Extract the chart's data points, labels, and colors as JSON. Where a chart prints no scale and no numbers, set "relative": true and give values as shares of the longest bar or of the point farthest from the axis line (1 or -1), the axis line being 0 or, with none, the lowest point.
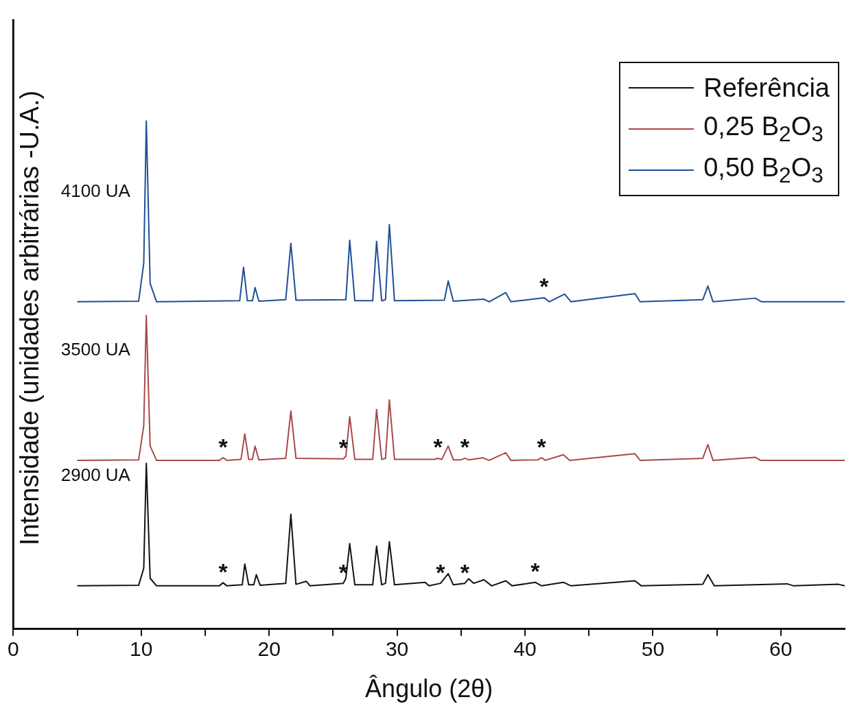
{
  "chart_data": {
    "type": "line",
    "xlabel": "Ângulo (2θ)",
    "ylabel": "Intensidade (unidades arbitrárias -U.A.)",
    "relative": true,
    "legend": "top right",
    "marker": "none",
    "line_style": "solid",
    "grid": false,
    "xlim": [
      0,
      65
    ],
    "xticks": [
      0,
      {
        "value": 5,
        "label": null
      },
      10,
      {
        "value": 15,
        "label": null
      },
      20,
      {
        "value": 25,
        "label": null
      },
      30,
      {
        "value": 35,
        "label": null
      },
      40,
      {
        "value": 45,
        "label": null
      },
      50,
      {
        "value": 55,
        "label": null
      },
      60
    ],
    "series": [
      {
        "name": "Referência",
        "color": "#111111",
        "x": [
          5,
          9.8,
          10.2,
          10.4,
          10.7,
          11.2,
          16.1,
          16.4,
          16.7,
          17.9,
          18.1,
          18.4,
          18.8,
          19.0,
          19.3,
          21.3,
          21.7,
          22.1,
          22.9,
          23.2,
          25.8,
          26.0,
          26.3,
          26.7,
          28.1,
          28.4,
          28.8,
          29.1,
          29.4,
          29.8,
          32.2,
          32.5,
          33.4,
          34.0,
          34.4,
          35.3,
          35.6,
          36.0,
          36.8,
          37.4,
          38.5,
          39,
          40.8,
          41.3,
          43,
          43.6,
          48.6,
          49.1,
          53.9,
          54.3,
          54.8,
          60.5,
          61,
          64.5,
          65
        ],
        "values": [
          0.085,
          0.086,
          0.12,
          0.326,
          0.1,
          0.085,
          0.085,
          0.091,
          0.085,
          0.087,
          0.128,
          0.087,
          0.087,
          0.107,
          0.086,
          0.09,
          0.226,
          0.088,
          0.094,
          0.085,
          0.09,
          0.1,
          0.168,
          0.087,
          0.087,
          0.163,
          0.087,
          0.09,
          0.172,
          0.087,
          0.092,
          0.085,
          0.09,
          0.109,
          0.087,
          0.09,
          0.099,
          0.09,
          0.097,
          0.085,
          0.095,
          0.085,
          0.092,
          0.085,
          0.092,
          0.085,
          0.095,
          0.085,
          0.088,
          0.107,
          0.085,
          0.089,
          0.085,
          0.088,
          0.085
        ]
      },
      {
        "name": "0,25 B$_{2}$O$_{3}$",
        "color": "#a84848",
        "x": [
          5,
          9.8,
          10.2,
          10.4,
          10.7,
          11.2,
          16.1,
          16.4,
          16.7,
          17.8,
          18.1,
          18.4,
          18.7,
          18.9,
          19.2,
          21.3,
          21.7,
          22.1,
          25.8,
          26.0,
          26.3,
          26.7,
          28.1,
          28.4,
          28.8,
          29.1,
          29.4,
          29.8,
          32.9,
          33.2,
          33.5,
          34.0,
          34.4,
          35.0,
          35.3,
          35.6,
          36.7,
          37.2,
          38.5,
          38.9,
          41.0,
          41.3,
          41.6,
          43,
          43.5,
          48.6,
          49,
          53.9,
          54.3,
          54.7,
          58,
          58.4,
          65
        ],
        "values": [
          0.332,
          0.333,
          0.4,
          0.617,
          0.36,
          0.332,
          0.332,
          0.337,
          0.332,
          0.334,
          0.384,
          0.334,
          0.334,
          0.36,
          0.333,
          0.336,
          0.429,
          0.336,
          0.335,
          0.34,
          0.418,
          0.334,
          0.334,
          0.432,
          0.334,
          0.336,
          0.451,
          0.334,
          0.334,
          0.336,
          0.334,
          0.36,
          0.333,
          0.333,
          0.336,
          0.333,
          0.337,
          0.332,
          0.347,
          0.332,
          0.333,
          0.337,
          0.332,
          0.343,
          0.332,
          0.345,
          0.332,
          0.336,
          0.363,
          0.332,
          0.338,
          0.332,
          0.332
        ]
      },
      {
        "name": "0,50 B$_{2}$O$_{3}$",
        "color": "#1f4e96",
        "x": [
          5,
          9.8,
          10.2,
          10.4,
          10.7,
          11.2,
          17.7,
          18.0,
          18.3,
          18.7,
          18.9,
          19.2,
          21.3,
          21.7,
          22.1,
          26.0,
          26.3,
          26.7,
          28.1,
          28.4,
          28.8,
          29.1,
          29.4,
          29.8,
          33.7,
          34.0,
          34.4,
          36.8,
          37.2,
          38.5,
          38.9,
          41.5,
          41.9,
          43.1,
          43.6,
          48.6,
          49,
          53.9,
          54.3,
          54.7,
          58,
          58.5,
          65
        ],
        "values": [
          0.644,
          0.645,
          0.72,
          1.0,
          0.68,
          0.644,
          0.646,
          0.712,
          0.646,
          0.646,
          0.672,
          0.645,
          0.648,
          0.759,
          0.647,
          0.648,
          0.765,
          0.646,
          0.646,
          0.763,
          0.646,
          0.648,
          0.796,
          0.646,
          0.647,
          0.685,
          0.645,
          0.649,
          0.644,
          0.662,
          0.644,
          0.652,
          0.644,
          0.659,
          0.644,
          0.66,
          0.644,
          0.648,
          0.675,
          0.644,
          0.651,
          0.644,
          0.644
        ]
      }
    ],
    "annotations": [
      "4100 UA",
      "3500 UA",
      "2900 UA",
      {
        "text": "*",
        "x": 41.5,
        "y": 0.652
      },
      {
        "text": "*",
        "x": 16.4,
        "y": 0.337
      },
      {
        "text": "*",
        "x": 25.8,
        "y": 0.335
      },
      {
        "text": "*",
        "x": 33.2,
        "y": 0.336
      },
      {
        "text": "*",
        "x": 35.3,
        "y": 0.336
      },
      {
        "text": "*",
        "x": 41.3,
        "y": 0.337
      },
      {
        "text": "*",
        "x": 16.4,
        "y": 0.091
      },
      {
        "text": "*",
        "x": 25.8,
        "y": 0.09
      },
      {
        "text": "*",
        "x": 33.4,
        "y": 0.09
      },
      {
        "text": "*",
        "x": 35.3,
        "y": 0.09
      },
      {
        "text": "*",
        "x": 40.8,
        "y": 0.092
      }
    ]
  }
}
